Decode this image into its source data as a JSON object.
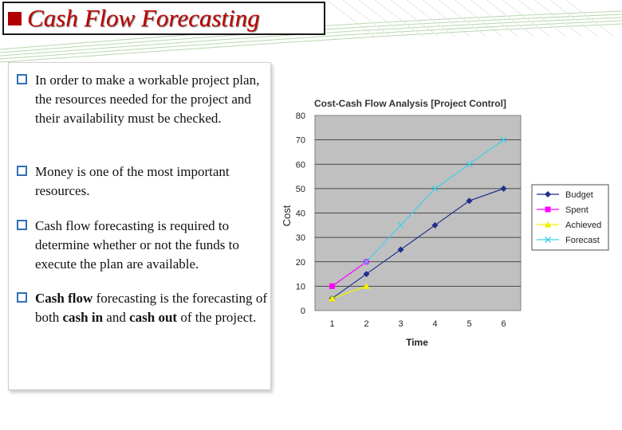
{
  "slide": {
    "title": "Cash Flow Forecasting",
    "accent_color": "#c00000",
    "bullet_icon": "q-box-bullet-icon",
    "bullets": [
      {
        "text": "In order to make a workable project plan, the resources needed for the project and their availability must be checked."
      },
      {
        "text": "Money is one of the most important resources."
      },
      {
        "text": "Cash flow forecasting is required to determine whether or not the funds to execute the plan are available."
      },
      {
        "parts": [
          "Cash flow",
          " forecasting is the forecasting of both ",
          "cash in",
          " and ",
          "cash out",
          " of the project."
        ]
      }
    ]
  },
  "chart_data": {
    "type": "line",
    "title": "Cost-Cash Flow Analysis [Project Control]",
    "xlabel": "Time",
    "ylabel": "Cost",
    "categories": [
      1,
      2,
      3,
      4,
      5,
      6
    ],
    "ylim": [
      0,
      80
    ],
    "yticks": [
      0,
      10,
      20,
      30,
      40,
      50,
      60,
      70,
      80
    ],
    "grid": true,
    "legend_position": "right",
    "series": [
      {
        "name": "Budget",
        "values": [
          5,
          15,
          25,
          35,
          45,
          50
        ],
        "color": "#1f2f8a",
        "marker": "diamond"
      },
      {
        "name": "Spent",
        "values": [
          10,
          20,
          null,
          null,
          null,
          null
        ],
        "color": "#ff00ff",
        "marker": "square"
      },
      {
        "name": "Achieved",
        "values": [
          5,
          10,
          null,
          null,
          null,
          null
        ],
        "color": "#f0f000",
        "marker": "triangle"
      },
      {
        "name": "Forecast",
        "values": [
          null,
          20,
          35,
          50,
          60,
          70
        ],
        "color": "#40d0e8",
        "marker": "x"
      }
    ]
  }
}
